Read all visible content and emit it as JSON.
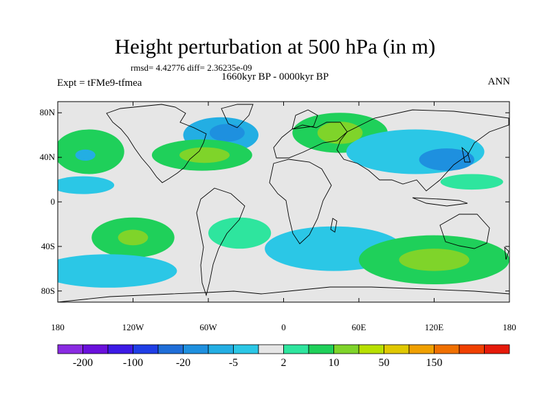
{
  "title": "Height perturbation at 500 hPa (in m)",
  "stats": "rmsd= 4.42776 diff= 2.36235e-09",
  "period": "1660kyr BP - 0000kyr BP",
  "experiment": "Expt = tFMe9-tfmea",
  "season": "ANN",
  "lat_ticks": [
    {
      "label": "80N",
      "lat": 80
    },
    {
      "label": "40N",
      "lat": 40
    },
    {
      "label": "0",
      "lat": 0
    },
    {
      "label": "40S",
      "lat": -40
    },
    {
      "label": "80S",
      "lat": -80
    }
  ],
  "lon_ticks": [
    {
      "label": "180",
      "lon": -180
    },
    {
      "label": "120W",
      "lon": -120
    },
    {
      "label": "60W",
      "lon": -60
    },
    {
      "label": "0",
      "lon": 0
    },
    {
      "label": "60E",
      "lon": 60
    },
    {
      "label": "120E",
      "lon": 120
    },
    {
      "label": "180",
      "lon": 180
    }
  ],
  "colorbar": {
    "colors": [
      "#8a2be2",
      "#6a10dc",
      "#3c1ae6",
      "#1f3ee6",
      "#1f6ed8",
      "#1e90df",
      "#23aee3",
      "#2bc7e6",
      "#e6e6e6",
      "#2ee59e",
      "#1fd05a",
      "#7fd42a",
      "#b8e000",
      "#e0c800",
      "#f0a000",
      "#f07000",
      "#f04000",
      "#e61a0a"
    ],
    "labels": [
      "-200",
      "-100",
      "-20",
      "-5",
      "2",
      "10",
      "50",
      "150"
    ],
    "label_bounds": [
      1,
      3,
      5,
      7,
      9,
      11,
      13,
      15
    ]
  },
  "palette": {
    "land_outline": "#000000",
    "zero": "#e6e6e6"
  },
  "anomalies": [
    {
      "name": "north-atlantic-negative",
      "lon": -50,
      "lat": 60,
      "rx": 30,
      "ry": 16,
      "level": 6
    },
    {
      "name": "north-atlantic-core",
      "lon": -45,
      "lat": 62,
      "rx": 14,
      "ry": 8,
      "level": 5
    },
    {
      "name": "eastern-us-positive",
      "lon": -65,
      "lat": 42,
      "rx": 40,
      "ry": 14,
      "level": 10
    },
    {
      "name": "eastern-us-core",
      "lon": -63,
      "lat": 42,
      "rx": 20,
      "ry": 7,
      "level": 11
    },
    {
      "name": "eurasia-positive",
      "lon": 45,
      "lat": 62,
      "rx": 38,
      "ry": 18,
      "level": 10
    },
    {
      "name": "eurasia-core",
      "lon": 45,
      "lat": 62,
      "rx": 18,
      "ry": 10,
      "level": 11
    },
    {
      "name": "east-asia-negative",
      "lon": 105,
      "lat": 45,
      "rx": 55,
      "ry": 20,
      "level": 7
    },
    {
      "name": "japan-core",
      "lon": 130,
      "lat": 38,
      "rx": 22,
      "ry": 10,
      "level": 5
    },
    {
      "name": "north-pacific-positive",
      "lon": -155,
      "lat": 45,
      "rx": 28,
      "ry": 20,
      "level": 10
    },
    {
      "name": "north-pacific-core",
      "lon": -158,
      "lat": 42,
      "rx": 8,
      "ry": 5,
      "level": 6
    },
    {
      "name": "south-pacific-positive",
      "lon": -120,
      "lat": -32,
      "rx": 33,
      "ry": 18,
      "level": 10
    },
    {
      "name": "south-pacific-core",
      "lon": -120,
      "lat": -32,
      "rx": 12,
      "ry": 7,
      "level": 11
    },
    {
      "name": "southern-ocean-negative",
      "lon": -140,
      "lat": -62,
      "rx": 55,
      "ry": 15,
      "level": 7
    },
    {
      "name": "south-atlantic-positive",
      "lon": -35,
      "lat": -28,
      "rx": 25,
      "ry": 14,
      "level": 9
    },
    {
      "name": "indian-ocean-negative",
      "lon": 40,
      "lat": -42,
      "rx": 55,
      "ry": 20,
      "level": 7
    },
    {
      "name": "south-indian-positive",
      "lon": 120,
      "lat": -52,
      "rx": 60,
      "ry": 22,
      "level": 10
    },
    {
      "name": "south-indian-core",
      "lon": 120,
      "lat": -52,
      "rx": 28,
      "ry": 10,
      "level": 11
    },
    {
      "name": "tropical-pacific-negative",
      "lon": -160,
      "lat": 15,
      "rx": 25,
      "ry": 8,
      "level": 7
    },
    {
      "name": "west-pacific-positive",
      "lon": 150,
      "lat": 18,
      "rx": 25,
      "ry": 7,
      "level": 9
    }
  ]
}
